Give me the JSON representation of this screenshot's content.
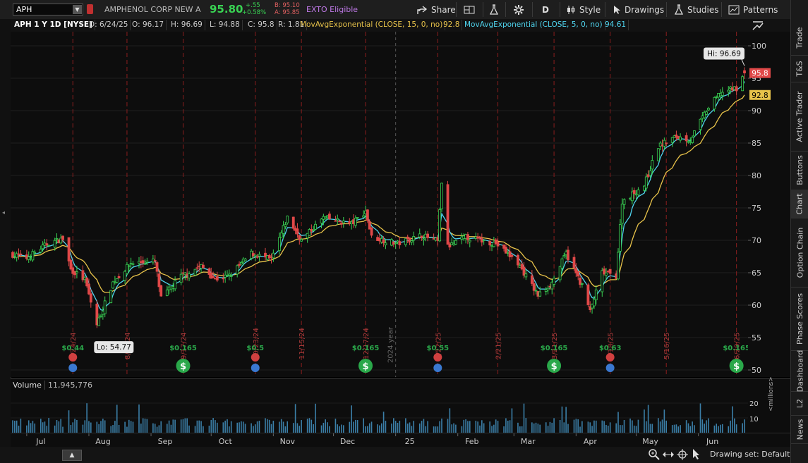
{
  "toolbar": {
    "symbol": "APH",
    "company": "AMPHENOL CORP NEW A",
    "last": "95.80",
    "change": "+.55",
    "change_pct": "+0.58%",
    "bid": "B: 95.10",
    "ask": "A: 95.85",
    "exto": "EXTO Eligible",
    "share": "Share",
    "period": "D",
    "style": "Style",
    "drawings": "Drawings",
    "studies": "Studies",
    "patterns": "Patterns"
  },
  "header": {
    "title": "APH 1 Y 1D [NYSE]",
    "date": "D: 6/24/25",
    "open": "O: 96.17",
    "high": "H: 96.69",
    "low": "L: 94.88",
    "close": "C: 95.8",
    "range": "R: 1.81",
    "ema15_label": "MovAvgExponential (CLOSE, 15, 0, no)",
    "ema15_value": "92.8",
    "ema5_label": "MovAvgExponential (CLOSE, 5, 0, no)",
    "ema5_value": "94.61"
  },
  "colors": {
    "up": "#39d353",
    "down": "#e04848",
    "ema15": "#e8c34a",
    "ema5": "#4fd4ee",
    "volume": "#3b7fa8",
    "dividend": "#2aa84a",
    "earnings": "#d04040"
  },
  "annotations": {
    "hi": "Hi: 96.69",
    "lo": "Lo: 54.77",
    "last_tag": "95.8",
    "ema_tag": "92.8",
    "year_mark": "2024 year"
  },
  "price_axis": [
    "100",
    "95",
    "90",
    "85",
    "80",
    "75",
    "70",
    "65",
    "60",
    "55",
    "50"
  ],
  "volume": {
    "label": "Volume",
    "value": "11,945,776",
    "axis": [
      "20",
      "10"
    ],
    "unit": "<millions>"
  },
  "time_axis": [
    "Jul",
    "Aug",
    "Sep",
    "Oct",
    "Nov",
    "Dec",
    "25",
    "Feb",
    "Mar",
    "Apr",
    "May",
    "Jun"
  ],
  "events": [
    {
      "date": "7/24/24",
      "dividend": "$0.44",
      "earnings": true
    },
    {
      "date": "8/20/24",
      "dividend": "",
      "earnings": false
    },
    {
      "date": "9/17/24",
      "dividend": "$0.165",
      "earnings": false
    },
    {
      "date": "10/23/24",
      "dividend": "$0.5",
      "earnings": true
    },
    {
      "date": "11/15/24",
      "dividend": "",
      "earnings": false
    },
    {
      "date": "12/17/24",
      "dividend": "$0.165",
      "earnings": false
    },
    {
      "date": "1/22/25",
      "dividend": "$0.55",
      "earnings": true
    },
    {
      "date": "2/21/25",
      "dividend": "",
      "earnings": false
    },
    {
      "date": "3/21/25",
      "dividend": "$0.165",
      "earnings": false
    },
    {
      "date": "4/18/25",
      "dividend": "$0.63",
      "earnings": true
    },
    {
      "date": "5/16/25",
      "dividend": "",
      "earnings": false
    },
    {
      "date": "6/20/25",
      "dividend": "$0.165",
      "earnings": false
    }
  ],
  "bottom": {
    "drawing_set": "Drawing set: Default"
  },
  "right_tabs": [
    "Trade",
    "T&S",
    "Active Trader",
    "Buttons",
    "Chart",
    "Option Chain",
    "Phase Scores",
    "Dashboard",
    "L2",
    "News"
  ],
  "active_tab": "Chart",
  "chart_data": {
    "type": "candlestick",
    "symbol": "APH",
    "ylim": [
      50,
      101
    ],
    "ema_periods": [
      15,
      5
    ],
    "anchors": [
      {
        "date": "2024-06-24",
        "close": 67.8
      },
      {
        "date": "2024-07-01",
        "close": 67.3
      },
      {
        "date": "2024-07-12",
        "close": 69.6
      },
      {
        "date": "2024-07-19",
        "close": 70.2
      },
      {
        "date": "2024-07-23",
        "close": 65.5
      },
      {
        "date": "2024-07-30",
        "close": 63.9
      },
      {
        "date": "2024-08-05",
        "close": 57.0
      },
      {
        "date": "2024-08-13",
        "close": 63.5
      },
      {
        "date": "2024-08-22",
        "close": 66.5
      },
      {
        "date": "2024-09-03",
        "close": 66.8
      },
      {
        "date": "2024-09-06",
        "close": 61.0
      },
      {
        "date": "2024-09-16",
        "close": 64.5
      },
      {
        "date": "2024-09-26",
        "close": 66.0
      },
      {
        "date": "2024-10-03",
        "close": 64.0
      },
      {
        "date": "2024-10-10",
        "close": 64.5
      },
      {
        "date": "2024-10-21",
        "close": 68.0
      },
      {
        "date": "2024-10-31",
        "close": 67.0
      },
      {
        "date": "2024-11-08",
        "close": 73.5
      },
      {
        "date": "2024-11-15",
        "close": 70.0
      },
      {
        "date": "2024-11-26",
        "close": 73.5
      },
      {
        "date": "2024-12-10",
        "close": 72.5
      },
      {
        "date": "2024-12-17",
        "close": 74.5
      },
      {
        "date": "2024-12-20",
        "close": 70.5
      },
      {
        "date": "2025-01-02",
        "close": 69.5
      },
      {
        "date": "2025-01-14",
        "close": 70.8
      },
      {
        "date": "2025-01-22",
        "close": 69.8
      },
      {
        "date": "2025-01-24",
        "close": 79.0
      },
      {
        "date": "2025-01-27",
        "close": 69.0
      },
      {
        "date": "2025-02-05",
        "close": 70.5
      },
      {
        "date": "2025-02-20",
        "close": 69.5
      },
      {
        "date": "2025-03-03",
        "close": 66.5
      },
      {
        "date": "2025-03-13",
        "close": 61.5
      },
      {
        "date": "2025-03-20",
        "close": 63.5
      },
      {
        "date": "2025-03-27",
        "close": 68.0
      },
      {
        "date": "2025-04-04",
        "close": 63.0
      },
      {
        "date": "2025-04-08",
        "close": 59.0
      },
      {
        "date": "2025-04-14",
        "close": 65.0
      },
      {
        "date": "2025-04-21",
        "close": 64.5
      },
      {
        "date": "2025-04-24",
        "close": 76.0
      },
      {
        "date": "2025-05-05",
        "close": 78.5
      },
      {
        "date": "2025-05-12",
        "close": 84.5
      },
      {
        "date": "2025-05-21",
        "close": 86.0
      },
      {
        "date": "2025-05-28",
        "close": 85.5
      },
      {
        "date": "2025-06-05",
        "close": 90.0
      },
      {
        "date": "2025-06-12",
        "close": 92.8
      },
      {
        "date": "2025-06-20",
        "close": 93.5
      },
      {
        "date": "2025-06-24",
        "close": 95.8
      }
    ],
    "high": 96.69,
    "low": 54.77
  }
}
